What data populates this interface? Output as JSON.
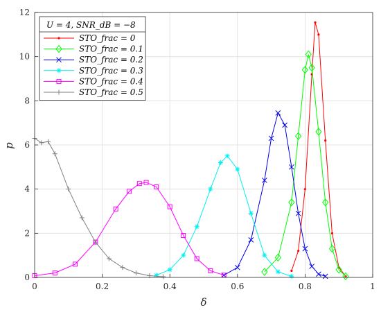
{
  "chart_data": {
    "type": "line",
    "title": "",
    "xlabel": "δ",
    "ylabel": "p",
    "xlim": [
      0,
      1
    ],
    "ylim": [
      0,
      12
    ],
    "xticks": [
      "0",
      "0.2",
      "0.4",
      "0.6",
      "0.8",
      "1"
    ],
    "yticks": [
      "0",
      "2",
      "4",
      "6",
      "8",
      "10",
      "12"
    ],
    "grid": true,
    "legend_position": "top-left",
    "legend_title": "U = 4, SNR_dB = −8",
    "series": [
      {
        "name": "STO_frac = 0",
        "color": "#ff0000",
        "marker": "dot",
        "peak_x": 0.83,
        "peak_y": 11.55,
        "x": [
          0.76,
          0.78,
          0.8,
          0.82,
          0.83,
          0.84,
          0.86,
          0.88,
          0.9,
          0.92
        ],
        "values": [
          0.3,
          1.2,
          4.0,
          9.2,
          11.55,
          11.0,
          6.2,
          2.0,
          0.45,
          0.05
        ]
      },
      {
        "name": "STO_frac = 0.1",
        "color": "#00ff00",
        "marker": "diamond",
        "peak_x": 0.81,
        "peak_y": 10.1,
        "x": [
          0.68,
          0.72,
          0.76,
          0.78,
          0.8,
          0.81,
          0.82,
          0.84,
          0.86,
          0.88,
          0.9,
          0.92
        ],
        "values": [
          0.25,
          0.9,
          3.4,
          6.4,
          9.4,
          10.1,
          9.5,
          6.6,
          3.4,
          1.3,
          0.35,
          0.05
        ]
      },
      {
        "name": "STO_frac = 0.2",
        "color": "#0000e6",
        "marker": "x",
        "peak_x": 0.72,
        "peak_y": 7.45,
        "x": [
          0.56,
          0.6,
          0.64,
          0.68,
          0.7,
          0.72,
          0.74,
          0.76,
          0.78,
          0.8,
          0.82,
          0.84,
          0.86
        ],
        "values": [
          0.1,
          0.45,
          1.7,
          4.4,
          6.3,
          7.45,
          6.9,
          5.0,
          2.9,
          1.3,
          0.5,
          0.15,
          0.05
        ]
      },
      {
        "name": "STO_frac = 0.3",
        "color": "#00f0f0",
        "marker": "asterisk",
        "peak_x": 0.57,
        "peak_y": 5.5,
        "x": [
          0.36,
          0.4,
          0.44,
          0.48,
          0.52,
          0.55,
          0.57,
          0.6,
          0.64,
          0.68,
          0.72,
          0.76
        ],
        "values": [
          0.1,
          0.35,
          1.0,
          2.3,
          4.0,
          5.2,
          5.5,
          4.9,
          2.9,
          1.0,
          0.25,
          0.05
        ]
      },
      {
        "name": "STO_frac = 0.4",
        "color": "#ff00ff",
        "marker": "square",
        "peak_x": 0.33,
        "peak_y": 4.3,
        "x": [
          0.0,
          0.06,
          0.12,
          0.18,
          0.24,
          0.28,
          0.31,
          0.33,
          0.36,
          0.4,
          0.44,
          0.48,
          0.52,
          0.56
        ],
        "values": [
          0.08,
          0.2,
          0.6,
          1.6,
          3.1,
          3.9,
          4.25,
          4.3,
          4.1,
          3.2,
          1.9,
          0.85,
          0.3,
          0.1
        ]
      },
      {
        "name": "STO_frac = 0.5",
        "color": "#808080",
        "marker": "plus",
        "peak_x": 0.0,
        "peak_y": 6.3,
        "x": [
          0.0,
          0.02,
          0.04,
          0.06,
          0.1,
          0.14,
          0.18,
          0.22,
          0.26,
          0.3,
          0.34,
          0.38
        ],
        "values": [
          6.3,
          6.1,
          6.15,
          5.6,
          4.0,
          2.7,
          1.6,
          0.85,
          0.45,
          0.2,
          0.08,
          0.03
        ]
      }
    ]
  }
}
